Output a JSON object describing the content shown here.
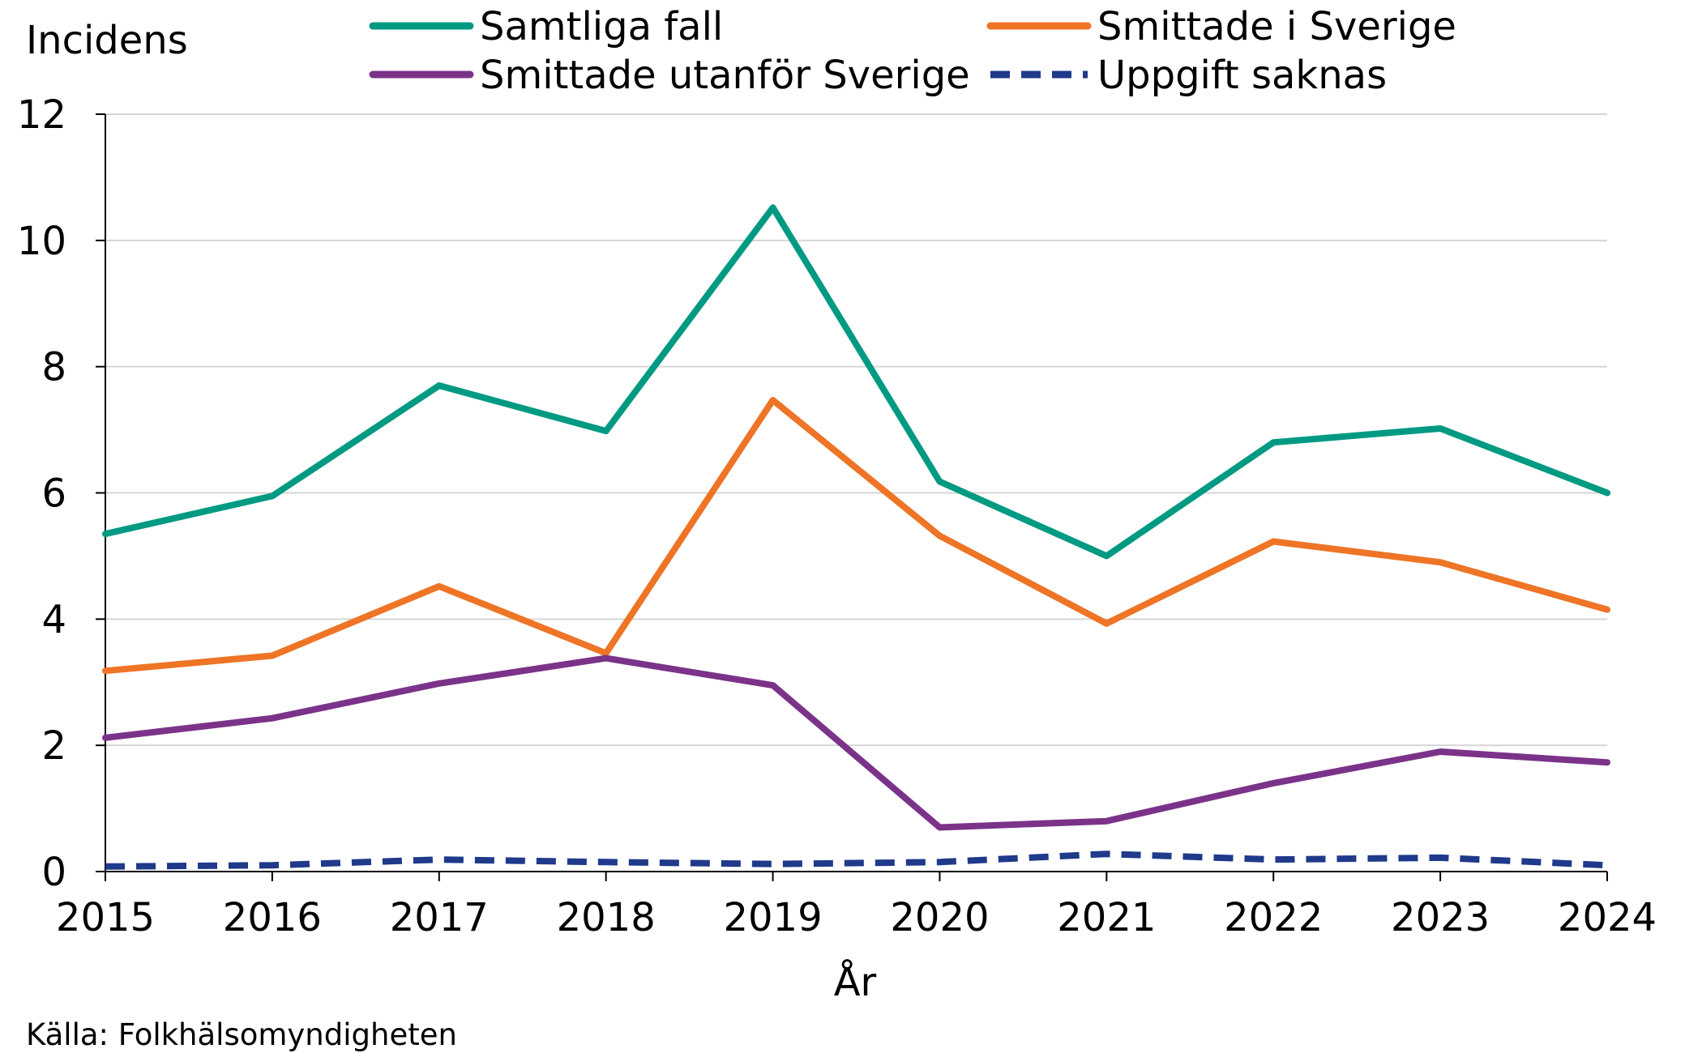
{
  "chart_data": {
    "type": "line",
    "title": "",
    "ylabel": "Incidens",
    "xlabel": "År",
    "source": "Källa: Folkhälsomyndigheten",
    "x": [
      2015,
      2016,
      2017,
      2018,
      2019,
      2020,
      2021,
      2022,
      2023,
      2024
    ],
    "x_tick_labels": [
      "2015",
      "2016",
      "2017",
      "2018",
      "2019",
      "2020",
      "2021",
      "2022",
      "2023",
      "2024"
    ],
    "ylim": [
      0,
      12
    ],
    "y_ticks": [
      0,
      2,
      4,
      6,
      8,
      10,
      12
    ],
    "y_tick_labels": [
      "0",
      "2",
      "4",
      "6",
      "8",
      "10",
      "12"
    ],
    "grid": "horizontal",
    "legend_position": "top",
    "series": [
      {
        "name": "Samtliga fall",
        "color": "#009a82",
        "style": "solid",
        "values": [
          5.35,
          5.95,
          7.7,
          6.98,
          10.52,
          6.18,
          5.0,
          6.8,
          7.02,
          6.0
        ]
      },
      {
        "name": "Smittade i Sverige",
        "color": "#ee7426",
        "style": "solid",
        "values": [
          3.18,
          3.42,
          4.52,
          3.46,
          7.47,
          5.32,
          3.93,
          5.23,
          4.9,
          4.15
        ]
      },
      {
        "name": "Smittade utanför Sverige",
        "color": "#7b3389",
        "style": "solid",
        "values": [
          2.12,
          2.43,
          2.98,
          3.38,
          2.95,
          0.7,
          0.8,
          1.4,
          1.9,
          1.73
        ]
      },
      {
        "name": "Uppgift saknas",
        "color": "#1f3a8a",
        "style": "dashed",
        "values": [
          0.08,
          0.1,
          0.19,
          0.15,
          0.12,
          0.15,
          0.28,
          0.19,
          0.22,
          0.1
        ]
      }
    ]
  }
}
